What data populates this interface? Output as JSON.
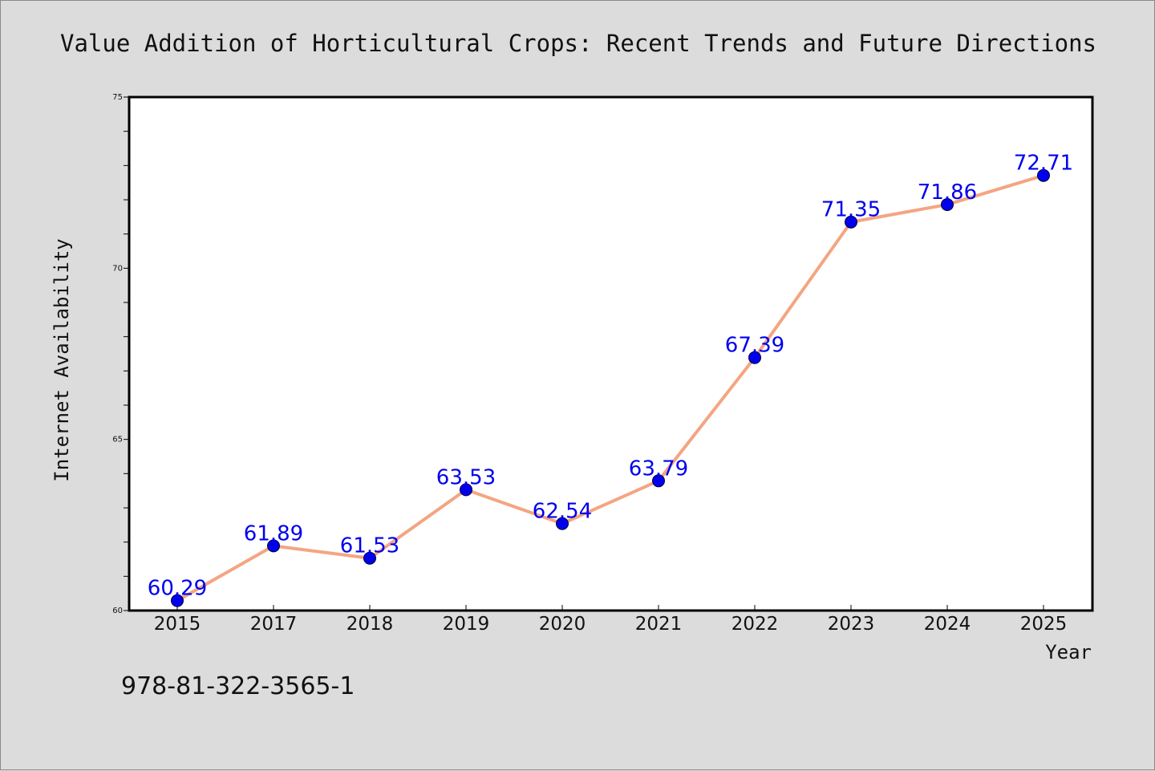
{
  "colors": {
    "background": "#dcdcdc",
    "plot_background": "#ffffff",
    "line": "#f4a582",
    "marker": "#0000ee",
    "data_label": "#0000ee",
    "axis": "#000000"
  },
  "isbn": "978-81-322-3565-1",
  "chart_data": {
    "type": "line",
    "title": "Value Addition of Horticultural Crops: Recent Trends and Future Directions",
    "xlabel": "Year",
    "ylabel": "Internet Availability",
    "categories": [
      "2015",
      "2017",
      "2018",
      "2019",
      "2020",
      "2021",
      "2022",
      "2023",
      "2024",
      "2025"
    ],
    "series": [
      {
        "values": [
          60.29,
          61.89,
          61.53,
          63.53,
          62.54,
          63.79,
          67.39,
          71.35,
          71.86,
          72.71
        ],
        "data_labels": [
          "60.29",
          "61.89",
          "61.53",
          "63.53",
          "62.54",
          "63.79",
          "67.39",
          "71.35",
          "71.86",
          "72.71"
        ]
      }
    ],
    "ylim": [
      60,
      75
    ],
    "yticks": [
      "60",
      "65",
      "70",
      "75"
    ],
    "y_minor_step": 1,
    "grid": false,
    "legend": "none",
    "marker": "circle"
  }
}
